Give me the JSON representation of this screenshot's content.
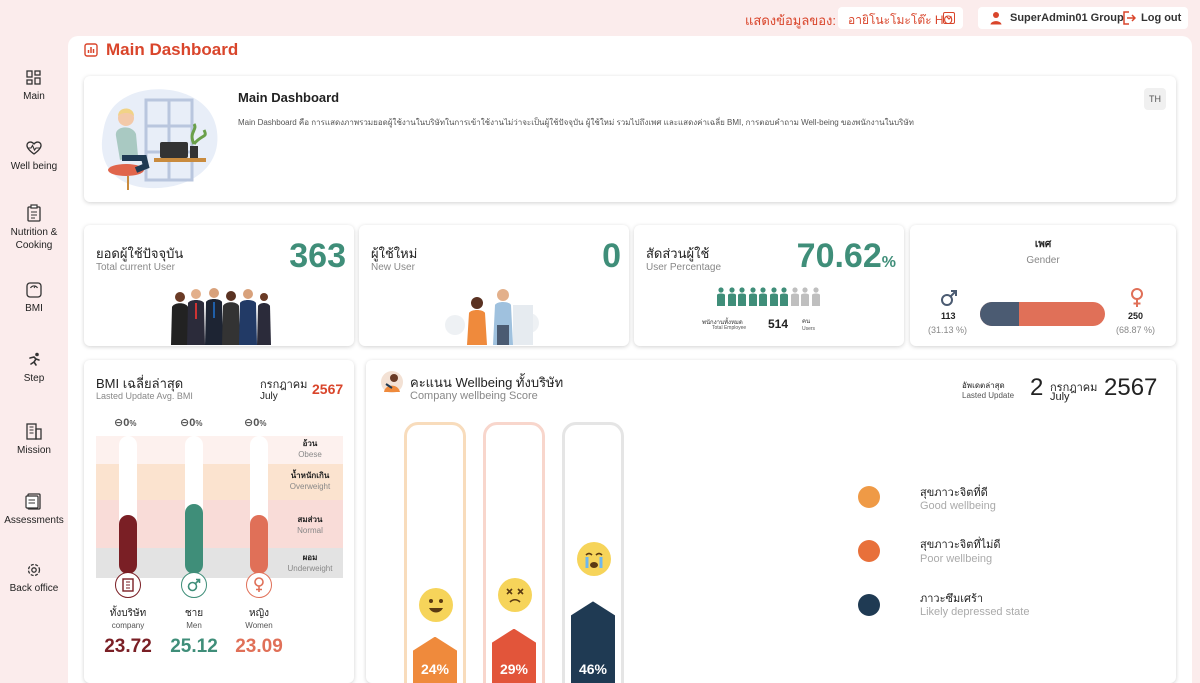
{
  "topbar": {
    "show_label": "แสดงข้อมูลของ:",
    "branch": "อายิโนะโมะโต๊ะ HO",
    "user": "SuperAdmin01 Group",
    "logout": "Log out"
  },
  "sidebar": {
    "items": [
      {
        "label": "Main",
        "icon": "grid-icon"
      },
      {
        "label": "Well being",
        "icon": "heart-pulse-icon"
      },
      {
        "label": "Nutrition &",
        "label2": "Cooking",
        "icon": "clipboard-icon"
      },
      {
        "label": "BMI",
        "icon": "scale-icon"
      },
      {
        "label": "Step",
        "icon": "running-icon"
      },
      {
        "label": "Mission",
        "icon": "building-icon"
      },
      {
        "label": "Assessments",
        "icon": "assessment-icon"
      },
      {
        "label": "Back office",
        "icon": "gear-icon"
      }
    ]
  },
  "page": {
    "title": "Main Dashboard"
  },
  "intro": {
    "title": "Main Dashboard",
    "description": "Main Dashboard คือ การแสดงภาพรวมยอดผู้ใช้งานในบริษัทในการเข้าใช้งานไม่ว่าจะเป็นผู้ใช้ปัจจุบัน ผู้ใช้ใหม่ รวมไปถึงเพศ และแสดงค่าเฉลี่ย BMI, การตอบคำถาม Well-being ของพนักงานในบริษัท",
    "lang": "TH"
  },
  "stats": {
    "current": {
      "th": "ยอดผู้ใช้ปัจจุบัน",
      "en": "Total current User",
      "value": "363"
    },
    "new": {
      "th": "ผู้ใช้ใหม่",
      "en": "New User",
      "value": "0"
    },
    "percent": {
      "th": "สัดส่วนผู้ใช้",
      "en": "User Percentage",
      "value": "70.62",
      "unit": "%",
      "employee_th": "พนักงานทั้งหมด",
      "employee_en": "Total Employee",
      "employee_count": "514",
      "users_th": "คน",
      "users_en": "Users"
    },
    "gender": {
      "th": "เพศ",
      "en": "Gender",
      "male_count": "113",
      "male_pct": "(31.13 %)",
      "male_ratio": 0.3113,
      "female_count": "250",
      "female_pct": "(68.87 %)"
    }
  },
  "bmi": {
    "title_th": "BMI เฉลี่ยล่าสุด",
    "title_en": "Lasted Update Avg. BMI",
    "month_th": "กรกฎาคม",
    "month_en": "July",
    "year": "2567",
    "zones": [
      {
        "th": "อ้วน",
        "en": "Obese"
      },
      {
        "th": "น้ำหนักเกิน",
        "en": "Overweight"
      },
      {
        "th": "สมส่วน",
        "en": "Normal"
      },
      {
        "th": "ผอม",
        "en": "Underweight"
      }
    ],
    "zero": "0",
    "pct_unit": "%",
    "columns": [
      {
        "th": "ทั้งบริษัท",
        "en": "company",
        "value": "23.72",
        "color": "#7a1f25",
        "level": 0.43
      },
      {
        "th": "ชาย",
        "en": "Men",
        "value": "25.12",
        "color": "#3f8e79",
        "level": 0.51
      },
      {
        "th": "หญิง",
        "en": "Women",
        "value": "23.09",
        "color": "#e07058",
        "level": 0.43
      }
    ]
  },
  "wellbeing": {
    "title_th": "คะแนน Wellbeing ทั้งบริษัท",
    "title_en": "Company wellbeing Score",
    "updated_th": "อัพเดตล่าสุด",
    "updated_en": "Lasted Update",
    "day": "2",
    "month_th": "กรกฎาคม",
    "month_en": "July",
    "year": "2567",
    "bars": [
      {
        "value": "24%",
        "ratio": 0.24,
        "color": "#ef8a3c",
        "border": "#f8dcbc"
      },
      {
        "value": "29%",
        "ratio": 0.29,
        "color": "#e2553a",
        "border": "#f8d6cc"
      },
      {
        "value": "46%",
        "ratio": 0.46,
        "color": "#1f3a53",
        "border": "#e5e5e5"
      }
    ],
    "legend": [
      {
        "th": "สุขภาวะจิตที่ดี",
        "en": "Good wellbeing",
        "color": "#ef9a46"
      },
      {
        "th": "สุขภาวะจิตที่ไม่ดี",
        "en": "Poor wellbeing",
        "color": "#e8703a"
      },
      {
        "th": "ภาวะซึมเศร้า",
        "en": "Likely depressed state",
        "color": "#1f3a53"
      }
    ]
  }
}
